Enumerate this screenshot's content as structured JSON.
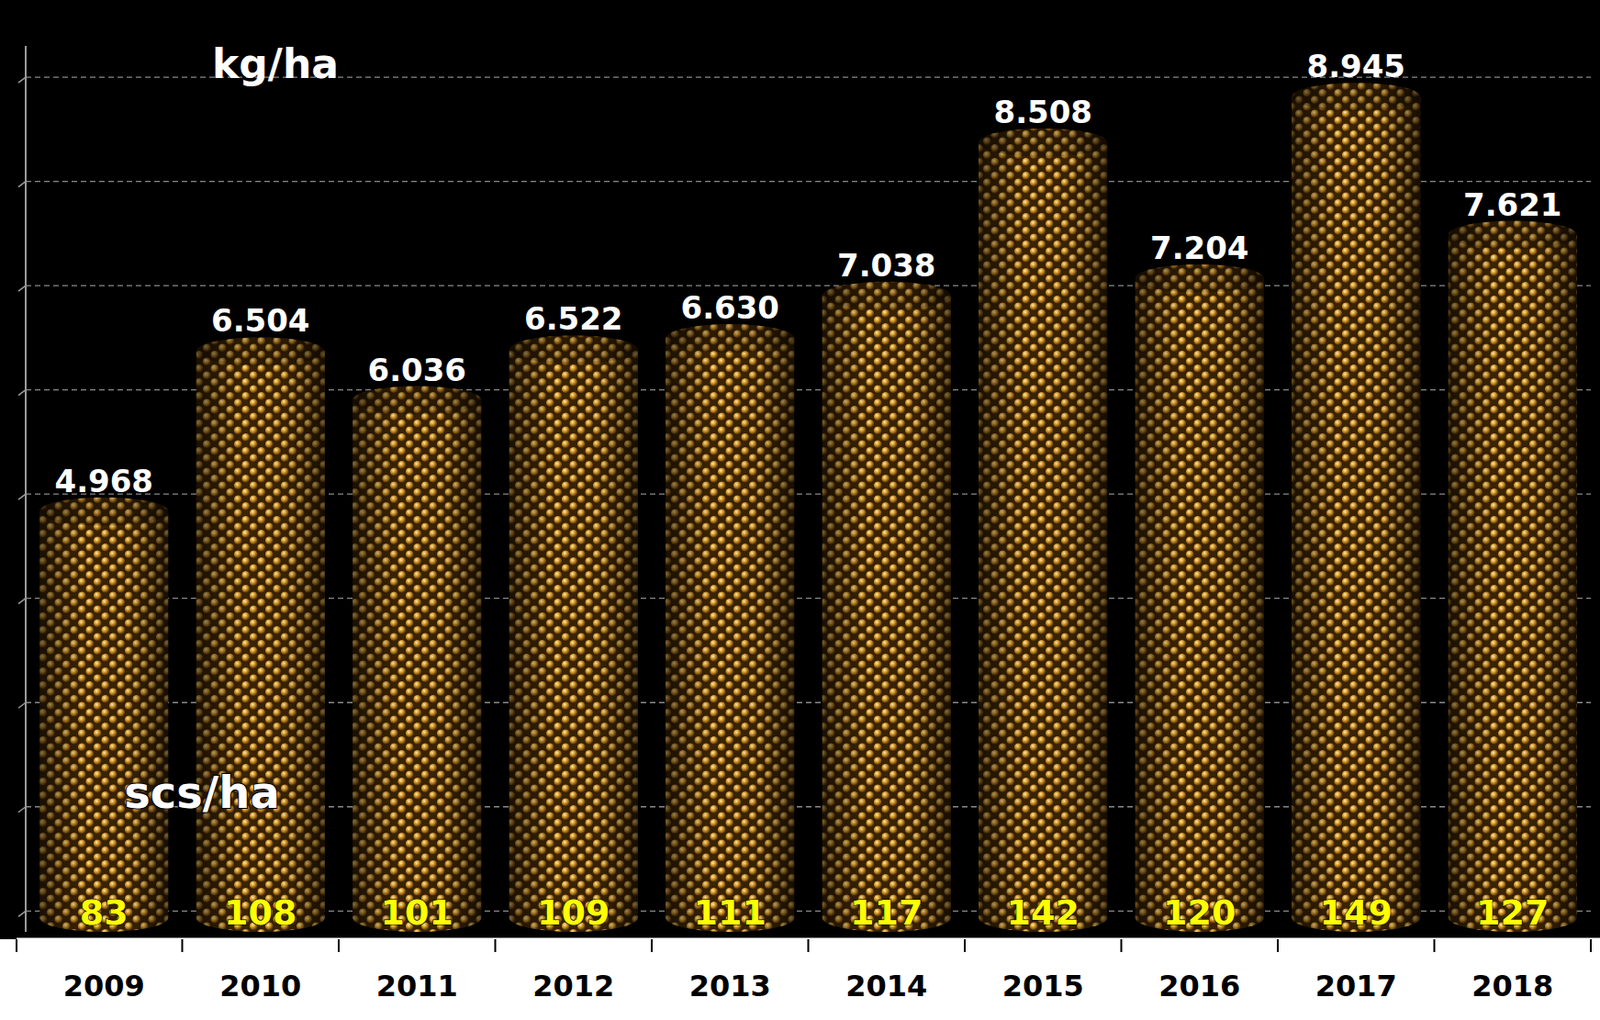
{
  "chart_data": {
    "type": "bar",
    "categories": [
      "2009",
      "2010",
      "2011",
      "2012",
      "2013",
      "2014",
      "2015",
      "2016",
      "2017",
      "2018"
    ],
    "values": [
      4968,
      6504,
      6036,
      6522,
      6630,
      7038,
      8508,
      7204,
      8945,
      7621
    ],
    "value_labels": [
      "4.968",
      "6.504",
      "6.036",
      "6.522",
      "6.630",
      "7.038",
      "8.508",
      "7.204",
      "8.945",
      "7.621"
    ],
    "y_label": "kg/ha",
    "sacks": [
      83,
      108,
      101,
      109,
      111,
      117,
      142,
      120,
      149,
      127
    ],
    "sacks_label": "scs/ha",
    "color": "#d99a2b",
    "ylim": [
      800,
      9300
    ],
    "yticks": [
      1000,
      2000,
      3000,
      4000,
      5000,
      6000,
      7000,
      8000,
      9000
    ],
    "grid": true,
    "data_labels": true,
    "tick_labels": "x"
  }
}
